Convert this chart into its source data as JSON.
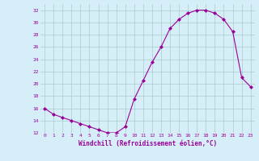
{
  "x": [
    0,
    1,
    2,
    3,
    4,
    5,
    6,
    7,
    8,
    9,
    10,
    11,
    12,
    13,
    14,
    15,
    16,
    17,
    18,
    19,
    20,
    21,
    22,
    23
  ],
  "y": [
    16,
    15,
    14.5,
    14,
    13.5,
    13,
    12.5,
    12,
    12,
    13,
    17.5,
    20.5,
    23.5,
    26,
    29,
    30.5,
    31.5,
    32,
    32,
    31.5,
    30.5,
    28.5,
    21,
    19.5
  ],
  "line_color": "#990099",
  "marker": "D",
  "marker_size": 2,
  "bg_color": "#d6eef8",
  "grid_color": "#aacccc",
  "xlabel": "Windchill (Refroidissement éolien,°C)",
  "xlabel_color": "#990099",
  "tick_color": "#990099",
  "ylim": [
    12,
    33
  ],
  "yticks": [
    12,
    14,
    16,
    18,
    20,
    22,
    24,
    26,
    28,
    30,
    32
  ],
  "xlim": [
    -0.5,
    23.5
  ],
  "xticks": [
    0,
    1,
    2,
    3,
    4,
    5,
    6,
    7,
    8,
    9,
    10,
    11,
    12,
    13,
    14,
    15,
    16,
    17,
    18,
    19,
    20,
    21,
    22,
    23
  ]
}
